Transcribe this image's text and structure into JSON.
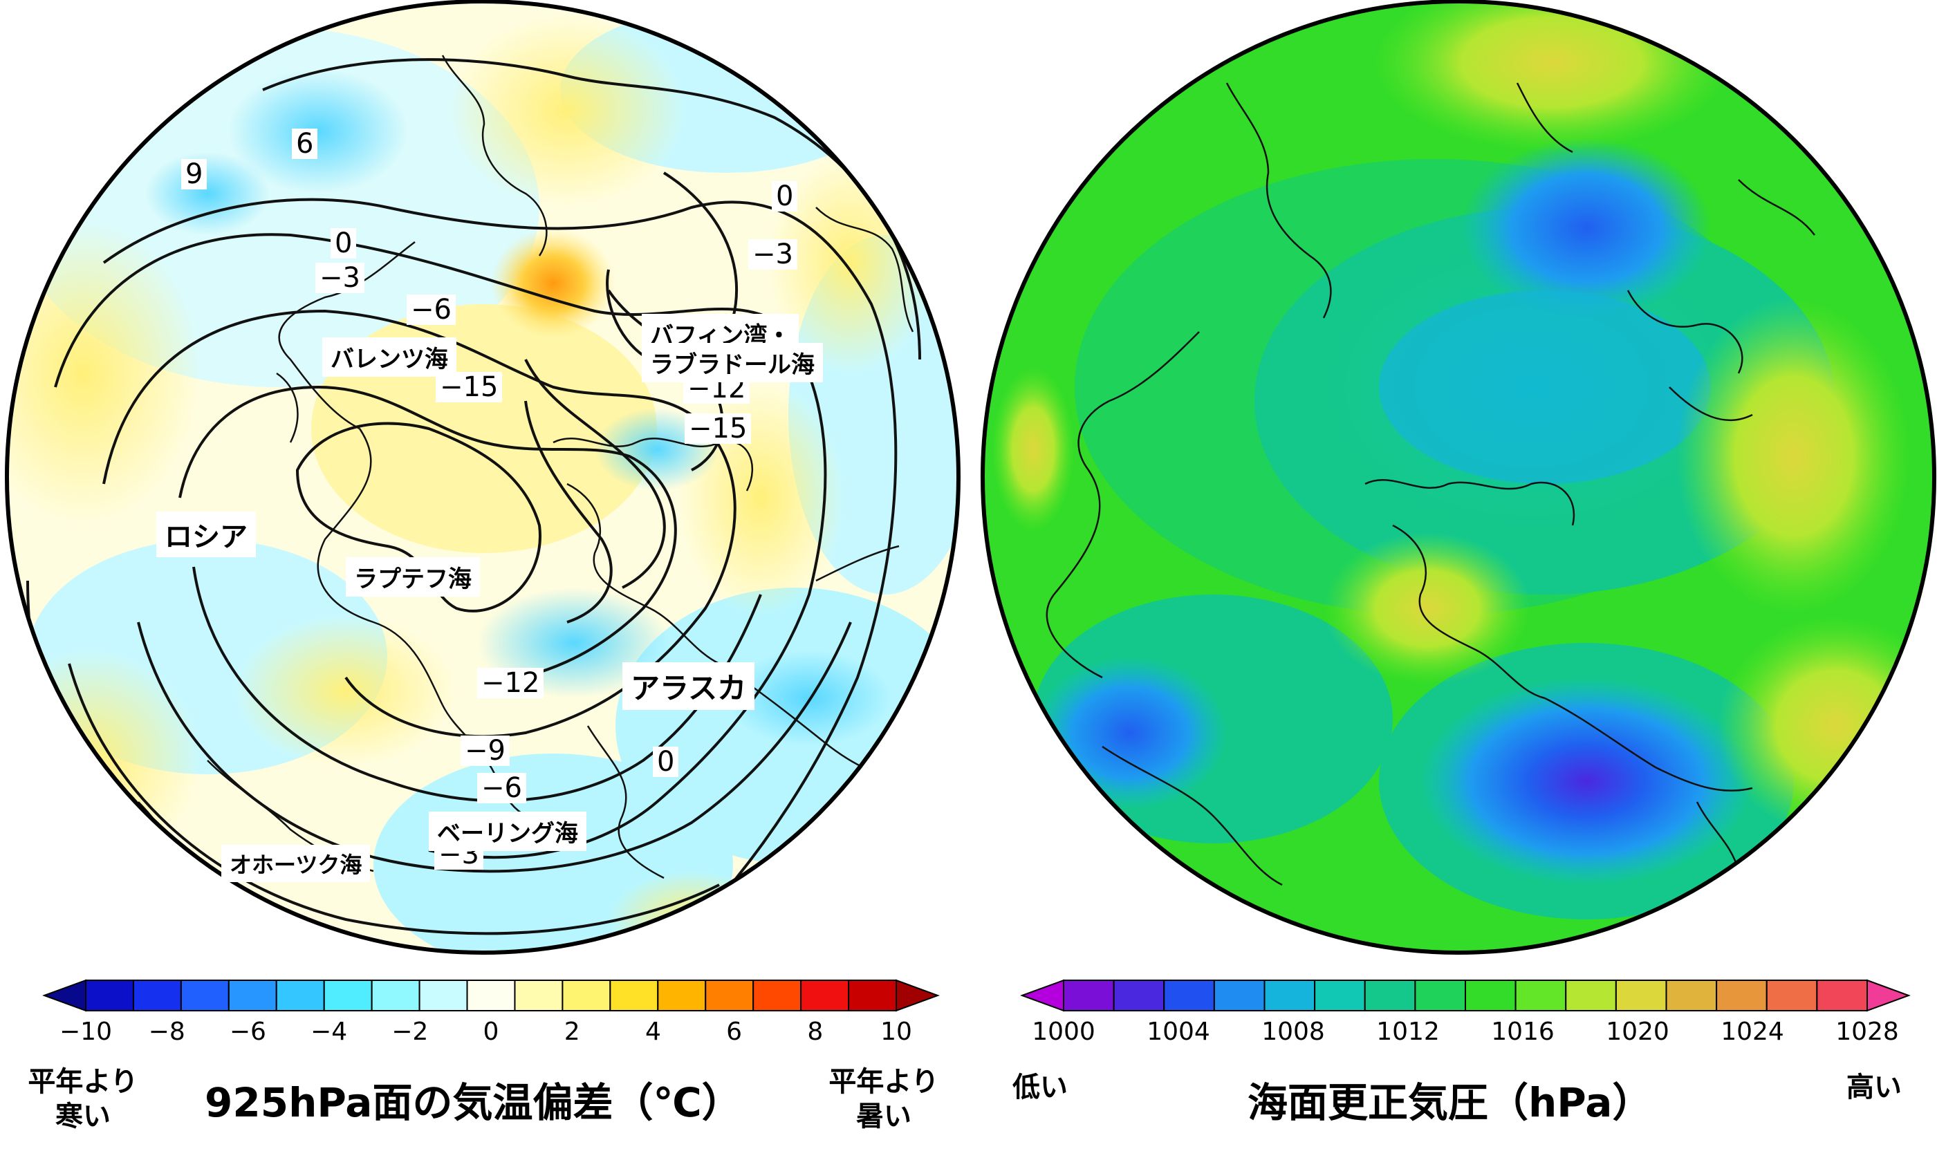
{
  "left_map": {
    "title": "925hPa面の気温偏差（℃）",
    "low_label": "平年より\n寒い",
    "high_label": "平年より\n暑い",
    "colorbar_ticks": [
      "−10",
      "−8",
      "−6",
      "−4",
      "−2",
      "0",
      "2",
      "4",
      "6",
      "8",
      "10"
    ],
    "colorbar_colors": [
      "#08088c",
      "#0c10c8",
      "#1630f0",
      "#2060ff",
      "#2896ff",
      "#34c6ff",
      "#50ecff",
      "#90f8ff",
      "#c8fcff",
      "#fffff0",
      "#fffcb0",
      "#fff470",
      "#ffe228",
      "#ffb400",
      "#ff8000",
      "#ff4800",
      "#f01010",
      "#c80000",
      "#a00000"
    ],
    "region_labels": {
      "russia": "ロシア",
      "barents": "バレンツ海",
      "laptev": "ラプテフ海",
      "okhotsk": "オホーツク海",
      "bering": "ベーリング海",
      "alaska": "アラスカ",
      "baffin_1": "バフィン湾・",
      "baffin_2": "ラブラドール海"
    },
    "contour_labels": {
      "c6": "6",
      "c9": "9",
      "c0_a": "0",
      "c0_b": "0",
      "c0_c": "0",
      "cm3_a": "−3",
      "cm3_b": "−3",
      "cm3_c": "−3",
      "cm6_a": "−6",
      "cm6_b": "−6",
      "cm9_a": "−9",
      "cm12_a": "−12",
      "cm12_b": "−12",
      "cm15_a": "−15",
      "cm15_b": "−15"
    }
  },
  "right_map": {
    "title": "海面更正気圧（hPa）",
    "low_label": "低い",
    "high_label": "高い",
    "colorbar_ticks": [
      "1000",
      "1004",
      "1008",
      "1012",
      "1016",
      "1020",
      "1024",
      "1028"
    ],
    "colorbar_colors": [
      "#b400dc",
      "#7a10d8",
      "#4a28e0",
      "#2050f0",
      "#1e8cf0",
      "#14b4dc",
      "#10c8b4",
      "#14c88c",
      "#1ed25a",
      "#32dc28",
      "#64e628",
      "#b4e632",
      "#dcd83c",
      "#e0b43c",
      "#e8963c",
      "#f06e46",
      "#f04658",
      "#f03c96"
    ]
  }
}
